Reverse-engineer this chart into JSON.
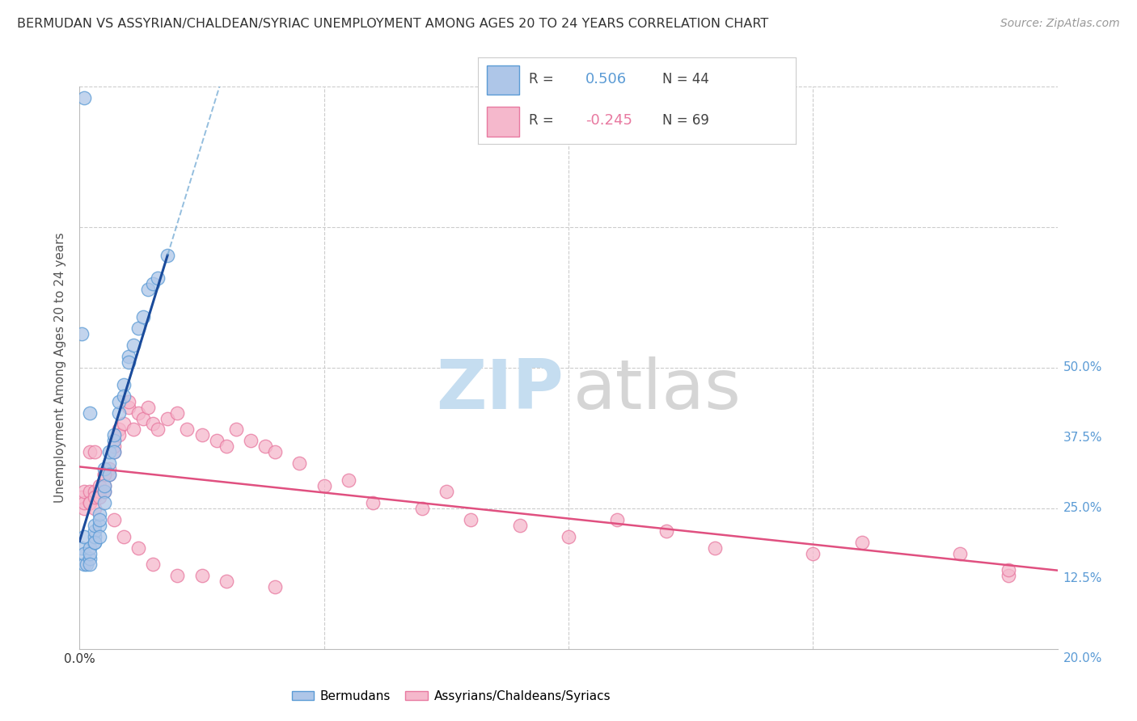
{
  "title": "BERMUDAN VS ASSYRIAN/CHALDEAN/SYRIAC UNEMPLOYMENT AMONG AGES 20 TO 24 YEARS CORRELATION CHART",
  "source": "Source: ZipAtlas.com",
  "ylabel": "Unemployment Among Ages 20 to 24 years",
  "xlim": [
    0.0,
    0.2
  ],
  "ylim": [
    0.0,
    0.5
  ],
  "blue_color": "#5b9bd5",
  "blue_fill": "#aec6e8",
  "pink_color": "#e879a0",
  "pink_fill": "#f5b8cc",
  "trend_blue_solid_color": "#1a4b9b",
  "trend_blue_dash_color": "#7aaed6",
  "trend_pink_color": "#e05080",
  "grid_color": "#cccccc",
  "bg_color": "#ffffff",
  "right_label_color": "#5b9bd5",
  "blue_R": "0.506",
  "blue_N": "44",
  "pink_R": "-0.245",
  "pink_N": "69",
  "blue_x": [
    0.0005,
    0.001,
    0.001,
    0.001,
    0.0015,
    0.002,
    0.002,
    0.002,
    0.002,
    0.003,
    0.003,
    0.003,
    0.003,
    0.003,
    0.004,
    0.004,
    0.004,
    0.004,
    0.005,
    0.005,
    0.005,
    0.005,
    0.006,
    0.006,
    0.006,
    0.007,
    0.007,
    0.007,
    0.008,
    0.008,
    0.009,
    0.009,
    0.01,
    0.01,
    0.011,
    0.012,
    0.013,
    0.014,
    0.015,
    0.016,
    0.0005,
    0.001,
    0.002,
    0.018
  ],
  "blue_y": [
    0.09,
    0.075,
    0.085,
    0.1,
    0.075,
    0.08,
    0.09,
    0.085,
    0.075,
    0.095,
    0.1,
    0.105,
    0.11,
    0.095,
    0.11,
    0.12,
    0.115,
    0.1,
    0.14,
    0.145,
    0.16,
    0.13,
    0.165,
    0.175,
    0.155,
    0.185,
    0.19,
    0.175,
    0.21,
    0.22,
    0.235,
    0.225,
    0.26,
    0.255,
    0.27,
    0.285,
    0.295,
    0.32,
    0.325,
    0.33,
    0.28,
    0.49,
    0.21,
    0.35
  ],
  "pink_x": [
    0.0005,
    0.001,
    0.001,
    0.001,
    0.002,
    0.002,
    0.002,
    0.003,
    0.003,
    0.003,
    0.004,
    0.004,
    0.004,
    0.005,
    0.005,
    0.005,
    0.006,
    0.006,
    0.007,
    0.007,
    0.008,
    0.008,
    0.009,
    0.01,
    0.01,
    0.011,
    0.012,
    0.013,
    0.014,
    0.015,
    0.016,
    0.018,
    0.02,
    0.022,
    0.025,
    0.028,
    0.03,
    0.032,
    0.035,
    0.038,
    0.04,
    0.045,
    0.05,
    0.055,
    0.06,
    0.07,
    0.08,
    0.09,
    0.1,
    0.11,
    0.12,
    0.13,
    0.15,
    0.16,
    0.18,
    0.19,
    0.002,
    0.003,
    0.005,
    0.007,
    0.009,
    0.012,
    0.015,
    0.02,
    0.025,
    0.03,
    0.04,
    0.075,
    0.19
  ],
  "pink_y": [
    0.135,
    0.125,
    0.13,
    0.14,
    0.13,
    0.14,
    0.13,
    0.14,
    0.125,
    0.135,
    0.145,
    0.14,
    0.135,
    0.155,
    0.145,
    0.14,
    0.16,
    0.155,
    0.175,
    0.18,
    0.195,
    0.19,
    0.2,
    0.215,
    0.22,
    0.195,
    0.21,
    0.205,
    0.215,
    0.2,
    0.195,
    0.205,
    0.21,
    0.195,
    0.19,
    0.185,
    0.18,
    0.195,
    0.185,
    0.18,
    0.175,
    0.165,
    0.145,
    0.15,
    0.13,
    0.125,
    0.115,
    0.11,
    0.1,
    0.115,
    0.105,
    0.09,
    0.085,
    0.095,
    0.085,
    0.065,
    0.175,
    0.175,
    0.155,
    0.115,
    0.1,
    0.09,
    0.075,
    0.065,
    0.065,
    0.06,
    0.055,
    0.14,
    0.07
  ]
}
